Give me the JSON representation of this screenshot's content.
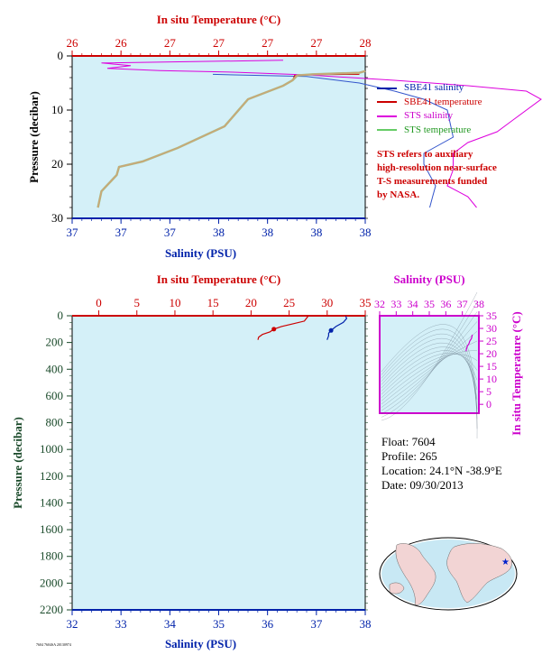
{
  "colors": {
    "red_axis": "#cc0000",
    "blue_axis": "#0022aa",
    "magenta_axis": "#cc00cc",
    "plot_bg": "#d4f0f8",
    "green_axis_label": "#1a4a2a",
    "sbe_salinity": "#3355cc",
    "sbe_temperature": "#cc0000",
    "sts_salinity": "#dd00dd",
    "sts_temperature": "#88cc88"
  },
  "legend": {
    "sbe41_salinity": "SBE41 salinity",
    "sbe41_temperature": "SBE41 temperature",
    "sts_salinity": "STS salinity",
    "sts_temperature": "STS temperature"
  },
  "note": {
    "line1": "STS refers to auxiliary",
    "line2": "high-resolution near-surface",
    "line3": "T-S measurements funded",
    "line4": "by NASA."
  },
  "info": {
    "float": "Float:  7604",
    "profile": "Profile:  265",
    "location": "Location:  24.1°N  -38.9°E",
    "date": "Date:  09/30/2013"
  },
  "footer_tag": "7604 7604SA 20130974",
  "chart_data": [
    {
      "type": "line",
      "top_axis_label": "In situ Temperature (°C)",
      "bottom_axis_label": "Salinity (PSU)",
      "left_axis_label": "Pressure (decibar)",
      "temp_ticks": [
        26,
        26,
        27,
        27,
        27,
        27,
        28
      ],
      "sal_ticks": [
        37,
        37,
        37,
        38,
        38,
        38,
        38
      ],
      "pressure_ticks": [
        0,
        10,
        20,
        30
      ],
      "temp_lim": [
        25.5,
        28.0
      ],
      "sal_lim": [
        37.0,
        38.0
      ],
      "pressure_lim": [
        0,
        30
      ],
      "series": [
        {
          "name": "SBE41 salinity",
          "axis": "salinity",
          "x": [
            37.48,
            37.8,
            37.98,
            38.1,
            38.2,
            38.28,
            38.3,
            38.2,
            38.2,
            38.22,
            38.24,
            38.23,
            38.22
          ],
          "y": [
            3.4,
            3.8,
            5,
            6.5,
            8,
            10,
            15,
            18,
            20,
            22,
            24,
            26,
            28
          ]
        },
        {
          "name": "SBE41 temperature",
          "axis": "temperature",
          "x": [
            27.95,
            27.4,
            27.38,
            27.3,
            27.0,
            26.92,
            26.8,
            26.65,
            26.5,
            26.4,
            26.1,
            25.9,
            25.88,
            25.75,
            25.72
          ],
          "y": [
            3.4,
            3.5,
            4.5,
            5.5,
            8,
            10,
            13,
            14.5,
            16,
            17,
            19.5,
            20.5,
            22,
            25,
            28
          ]
        },
        {
          "name": "STS salinity",
          "axis": "salinity",
          "x": [
            37.72,
            37.1,
            37.2,
            37.12,
            37.3,
            37.55,
            37.8,
            38.1,
            38.35,
            38.55,
            38.6,
            38.5,
            38.45,
            38.35,
            38.3,
            38.3,
            38.28,
            38.35,
            38.38
          ],
          "y": [
            0.8,
            1.3,
            1.8,
            2.3,
            2.7,
            3.0,
            3.5,
            4.5,
            5.5,
            6.5,
            8,
            12,
            14,
            16,
            18,
            21,
            24,
            26,
            28
          ]
        },
        {
          "name": "STS temperature",
          "axis": "temperature",
          "x": [
            28.0,
            27.95,
            27.55,
            27.42,
            27.38,
            27.3,
            27.0,
            26.92,
            26.8,
            26.65,
            26.5,
            26.4,
            26.1,
            25.9,
            25.88,
            25.75,
            25.72
          ],
          "y": [
            2.8,
            3.1,
            3.4,
            3.6,
            4.5,
            5.5,
            8,
            10,
            13,
            14.5,
            16,
            17,
            19.5,
            20.5,
            22,
            25,
            28
          ]
        }
      ]
    },
    {
      "type": "line",
      "top_axis_label": "In situ Temperature (°C)",
      "bottom_axis_label": "Salinity (PSU)",
      "left_axis_label": "Pressure (decibar)",
      "temp_ticks": [
        0,
        5,
        10,
        15,
        20,
        25,
        30,
        35
      ],
      "sal_ticks": [
        32,
        33,
        34,
        35,
        36,
        37,
        38
      ],
      "pressure_ticks": [
        0,
        200,
        400,
        600,
        800,
        1000,
        1200,
        1400,
        1600,
        1800,
        2000,
        2200
      ],
      "temp_lim": [
        -3.5,
        35
      ],
      "sal_lim": [
        32,
        38
      ],
      "pressure_lim": [
        0,
        2200
      ],
      "series": [
        {
          "name": "Temperature",
          "axis": "temperature",
          "x": [
            27.5,
            27.0,
            25.5,
            24.0,
            23.0,
            22.5,
            21.5,
            21.0,
            20.9
          ],
          "y": [
            3,
            40,
            60,
            80,
            100,
            120,
            140,
            160,
            180
          ]
        },
        {
          "name": "Salinity",
          "axis": "salinity",
          "x": [
            37.6,
            37.62,
            37.55,
            37.4,
            37.3,
            37.25,
            37.25,
            37.22
          ],
          "y": [
            3,
            20,
            50,
            80,
            110,
            130,
            150,
            180
          ]
        }
      ]
    },
    {
      "type": "scatter",
      "title": "Salinity (PSU)",
      "ylabel": "In situ Temperature (°C)",
      "x_ticks": [
        32,
        33,
        34,
        35,
        36,
        37,
        38
      ],
      "y_ticks": [
        0,
        5,
        10,
        15,
        20,
        25,
        30,
        35
      ],
      "xlim": [
        32,
        38
      ],
      "ylim": [
        -3.5,
        35
      ],
      "points_x": [
        37.6,
        37.55,
        37.45,
        37.4,
        37.3,
        37.25,
        37.22
      ],
      "points_y": [
        27.5,
        26.0,
        25.0,
        24.0,
        23.0,
        22.0,
        21.0
      ]
    }
  ]
}
